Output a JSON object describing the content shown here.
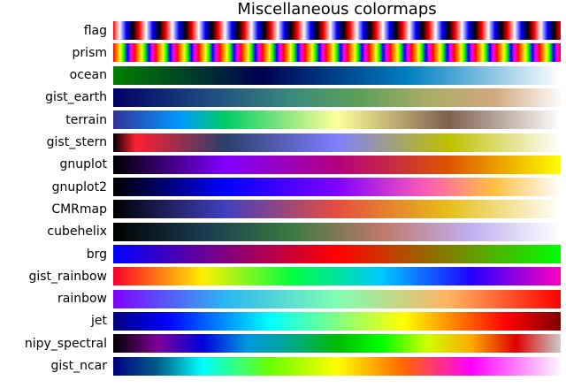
{
  "chart_data": {
    "type": "heatmap",
    "title": "Miscellaneous colormaps",
    "colormaps": [
      {
        "name": "flag",
        "stops": [
          [
            0,
            "#ff0000"
          ],
          [
            0.5,
            "#ffffff"
          ],
          [
            1,
            "#0000ff"
          ]
        ]
      },
      {
        "name": "prism",
        "stops": [
          [
            0,
            "#ff0000"
          ],
          [
            0.3,
            "#ffff00"
          ],
          [
            0.6,
            "#00ff00"
          ],
          [
            1,
            "#0000ff"
          ]
        ]
      },
      {
        "name": "ocean",
        "stops": [
          [
            0,
            "#008000"
          ],
          [
            0.33,
            "#000050"
          ],
          [
            0.66,
            "#0080c0"
          ],
          [
            1,
            "#ffffff"
          ]
        ]
      },
      {
        "name": "gist_earth",
        "stops": [
          [
            0,
            "#000066"
          ],
          [
            0.2,
            "#1c4680"
          ],
          [
            0.4,
            "#3a8a7c"
          ],
          [
            0.55,
            "#5ca05a"
          ],
          [
            0.7,
            "#a8ac64"
          ],
          [
            0.85,
            "#d1a87c"
          ],
          [
            1,
            "#fdfbfb"
          ]
        ]
      },
      {
        "name": "terrain",
        "stops": [
          [
            0,
            "#333399"
          ],
          [
            0.15,
            "#0099ff"
          ],
          [
            0.25,
            "#00cc66"
          ],
          [
            0.5,
            "#ffff99"
          ],
          [
            0.75,
            "#7f5f4f"
          ],
          [
            1,
            "#ffffff"
          ]
        ]
      },
      {
        "name": "gist_stern",
        "stops": [
          [
            0,
            "#000000"
          ],
          [
            0.05,
            "#ff2030"
          ],
          [
            0.25,
            "#2a3f6a"
          ],
          [
            0.5,
            "#8080ff"
          ],
          [
            0.75,
            "#c0c000"
          ],
          [
            1,
            "#ffffff"
          ]
        ]
      },
      {
        "name": "gnuplot",
        "stops": [
          [
            0,
            "#000000"
          ],
          [
            0.25,
            "#7f00ff"
          ],
          [
            0.5,
            "#b40080"
          ],
          [
            0.75,
            "#dd5500"
          ],
          [
            1,
            "#ffff00"
          ]
        ]
      },
      {
        "name": "gnuplot2",
        "stops": [
          [
            0,
            "#000000"
          ],
          [
            0.25,
            "#0000ff"
          ],
          [
            0.5,
            "#8000ff"
          ],
          [
            0.7,
            "#ff5cb4"
          ],
          [
            0.85,
            "#ffbf40"
          ],
          [
            1,
            "#ffffff"
          ]
        ]
      },
      {
        "name": "CMRmap",
        "stops": [
          [
            0,
            "#000000"
          ],
          [
            0.25,
            "#4040bf"
          ],
          [
            0.5,
            "#e64d40"
          ],
          [
            0.75,
            "#e6bf1a"
          ],
          [
            1,
            "#ffffff"
          ]
        ]
      },
      {
        "name": "cubehelix",
        "stops": [
          [
            0,
            "#000000"
          ],
          [
            0.2,
            "#1a3a50"
          ],
          [
            0.4,
            "#3a7a40"
          ],
          [
            0.6,
            "#c0786a"
          ],
          [
            0.8,
            "#c0b0f0"
          ],
          [
            1,
            "#ffffff"
          ]
        ]
      },
      {
        "name": "brg",
        "stops": [
          [
            0,
            "#0000ff"
          ],
          [
            0.5,
            "#ff0000"
          ],
          [
            1,
            "#00ff00"
          ]
        ]
      },
      {
        "name": "gist_rainbow",
        "stops": [
          [
            0,
            "#ff0029"
          ],
          [
            0.2,
            "#ffee00"
          ],
          [
            0.4,
            "#00ff40"
          ],
          [
            0.6,
            "#00c8ff"
          ],
          [
            0.8,
            "#2200ff"
          ],
          [
            1,
            "#ff00bf"
          ]
        ]
      },
      {
        "name": "rainbow",
        "stops": [
          [
            0,
            "#8000ff"
          ],
          [
            0.25,
            "#2cb5f2"
          ],
          [
            0.5,
            "#80ffb4"
          ],
          [
            0.75,
            "#ffb360"
          ],
          [
            1,
            "#ff0000"
          ]
        ]
      },
      {
        "name": "jet",
        "stops": [
          [
            0,
            "#00007f"
          ],
          [
            0.12,
            "#0000ff"
          ],
          [
            0.35,
            "#00ffff"
          ],
          [
            0.5,
            "#80ff80"
          ],
          [
            0.65,
            "#ffff00"
          ],
          [
            0.88,
            "#ff0000"
          ],
          [
            1,
            "#7f0000"
          ]
        ]
      },
      {
        "name": "nipy_spectral",
        "stops": [
          [
            0,
            "#000000"
          ],
          [
            0.1,
            "#7f0099"
          ],
          [
            0.2,
            "#0000dd"
          ],
          [
            0.3,
            "#0099dd"
          ],
          [
            0.4,
            "#00aa88"
          ],
          [
            0.5,
            "#00bb00"
          ],
          [
            0.6,
            "#00ff00"
          ],
          [
            0.7,
            "#ccff00"
          ],
          [
            0.8,
            "#ffaa00"
          ],
          [
            0.9,
            "#dd0000"
          ],
          [
            1,
            "#cccccc"
          ]
        ]
      },
      {
        "name": "gist_ncar",
        "stops": [
          [
            0,
            "#000080"
          ],
          [
            0.1,
            "#005e8a"
          ],
          [
            0.2,
            "#00ffff"
          ],
          [
            0.35,
            "#66ff00"
          ],
          [
            0.5,
            "#ffff00"
          ],
          [
            0.65,
            "#ff6600"
          ],
          [
            0.8,
            "#ff00ff"
          ],
          [
            1,
            "#fef8fe"
          ]
        ]
      }
    ]
  }
}
